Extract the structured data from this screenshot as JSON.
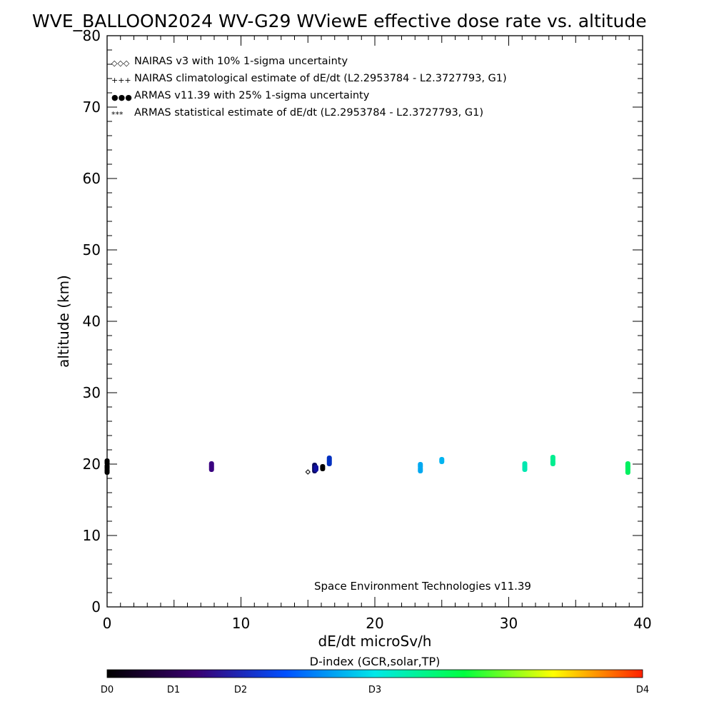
{
  "chart_data": {
    "type": "scatter",
    "title": "WVE_BALLOON2024 WV-G29 WViewE effective dose rate vs. altitude",
    "xlabel": "dE/dt microSv/h",
    "ylabel": "altitude (km)",
    "xlim": [
      0,
      40
    ],
    "ylim": [
      0,
      80
    ],
    "x_ticks": [
      "0",
      "10",
      "20",
      "30",
      "40"
    ],
    "y_ticks": [
      "0",
      "10",
      "20",
      "30",
      "40",
      "50",
      "60",
      "70",
      "80"
    ],
    "legend": {
      "placement": "top-left",
      "entries": [
        {
          "symbol": "◇◇◇",
          "label": "NAIRAS v3 with 10% 1-sigma uncertainty"
        },
        {
          "symbol": "+++",
          "label": "NAIRAS climatological estimate of dE/dt (L2.2953784 - L2.3727793, G1)"
        },
        {
          "symbol": "●●●",
          "label": "ARMAS v11.39 with 25% 1-sigma uncertainty",
          "color": "#0033dd"
        },
        {
          "symbol": "***",
          "label": "ARMAS statistical estimate of dE/dt (L2.2953784 - L2.3727793, G1)"
        }
      ]
    },
    "annotation": "Space Environment Technologies v11.39",
    "colorbar": {
      "title": "D-index (GCR,solar,TP)",
      "labels": [
        {
          "text": "D0",
          "value": 0
        },
        {
          "text": "D1",
          "value": 1
        },
        {
          "text": "D2",
          "value": 2
        },
        {
          "text": "D3",
          "value": 3
        },
        {
          "text": "D4",
          "value": 4
        }
      ],
      "colors": [
        "#000000",
        "#3a0070",
        "#0050ff",
        "#00e8e8",
        "#00ff40",
        "#ffff00",
        "#ff2000"
      ]
    },
    "series": [
      {
        "name": "ARMAS v11.39 with 25% 1-sigma uncertainty",
        "points": [
          {
            "x": 0.0,
            "y": 19.0,
            "c": "#000000"
          },
          {
            "x": 0.0,
            "y": 19.6,
            "c": "#000000"
          },
          {
            "x": 0.0,
            "y": 20.3,
            "c": "#000000"
          },
          {
            "x": 7.8,
            "y": 19.4,
            "c": "#3a0080"
          },
          {
            "x": 7.8,
            "y": 19.9,
            "c": "#3a0080"
          },
          {
            "x": 15.5,
            "y": 19.2,
            "c": "#0a0a60"
          },
          {
            "x": 15.5,
            "y": 19.7,
            "c": "#0a0a60"
          },
          {
            "x": 15.6,
            "y": 19.4,
            "c": "#1010a0"
          },
          {
            "x": 16.1,
            "y": 19.5,
            "c": "#000000"
          },
          {
            "x": 16.6,
            "y": 20.2,
            "c": "#0030c0"
          },
          {
            "x": 16.6,
            "y": 20.7,
            "c": "#0030c0"
          },
          {
            "x": 23.4,
            "y": 19.2,
            "c": "#00a8f0"
          },
          {
            "x": 23.4,
            "y": 19.8,
            "c": "#00a8f0"
          },
          {
            "x": 25.0,
            "y": 20.5,
            "c": "#00b4f0"
          },
          {
            "x": 31.2,
            "y": 19.4,
            "c": "#00e8b0"
          },
          {
            "x": 31.2,
            "y": 19.9,
            "c": "#00e8b0"
          },
          {
            "x": 33.3,
            "y": 20.2,
            "c": "#00ee90"
          },
          {
            "x": 33.3,
            "y": 20.8,
            "c": "#00ee90"
          },
          {
            "x": 38.9,
            "y": 19.0,
            "c": "#00f060"
          },
          {
            "x": 38.9,
            "y": 19.5,
            "c": "#00f060"
          },
          {
            "x": 38.9,
            "y": 19.9,
            "c": "#00f060"
          }
        ]
      },
      {
        "name": "NAIRAS v3 with 10% 1-sigma uncertainty",
        "points": [
          {
            "x": 15.0,
            "y": 18.9
          }
        ]
      }
    ]
  }
}
